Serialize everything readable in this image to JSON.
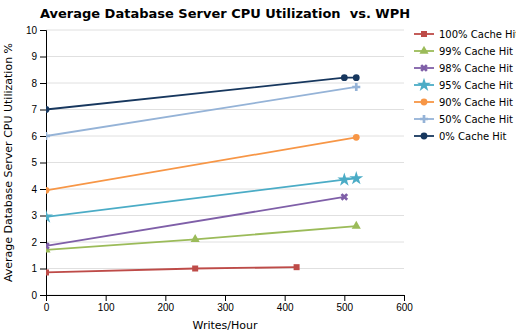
{
  "chart_data": {
    "type": "line",
    "title": "Average Database Server CPU Utilization  vs. WPH",
    "x_label": "Writes/Hour",
    "y_label": "Average Database Server CPU Utilization %",
    "xlim": [
      0,
      600
    ],
    "ylim": [
      0,
      10
    ],
    "xticks": [
      0,
      100,
      200,
      300,
      400,
      500,
      600
    ],
    "yticks": [
      0,
      1,
      2,
      3,
      4,
      5,
      6,
      7,
      8,
      9,
      10
    ],
    "grid": "y",
    "legend": "right",
    "series": [
      {
        "name": "100% Cache Hit",
        "color": "#BE4B48",
        "marker": "square",
        "x": [
          0,
          250,
          420
        ],
        "values": [
          0.85,
          1.0,
          1.05
        ]
      },
      {
        "name": "99% Cache Hit",
        "color": "#9BBB59",
        "marker": "triangle",
        "x": [
          0,
          250,
          520
        ],
        "values": [
          1.7,
          2.1,
          2.6
        ]
      },
      {
        "name": "98% Cache Hit",
        "color": "#7F5FA8",
        "marker": "x",
        "x": [
          0,
          500
        ],
        "values": [
          1.85,
          3.7
        ]
      },
      {
        "name": "95% Cache Hit",
        "color": "#4BACC6",
        "marker": "star",
        "x": [
          0,
          500,
          520
        ],
        "values": [
          2.95,
          4.35,
          4.4
        ]
      },
      {
        "name": "90% Cache Hit",
        "color": "#F79646",
        "marker": "circle",
        "x": [
          0,
          520
        ],
        "values": [
          3.95,
          5.95
        ]
      },
      {
        "name": "50% Cache Hit",
        "color": "#95B3D7",
        "marker": "plus",
        "x": [
          0,
          520
        ],
        "values": [
          6.0,
          7.85
        ]
      },
      {
        "name": "0% Cache Hit",
        "color": "#17375E",
        "marker": "circle",
        "x": [
          0,
          500,
          520
        ],
        "values": [
          7.0,
          8.2,
          8.2
        ]
      }
    ]
  }
}
